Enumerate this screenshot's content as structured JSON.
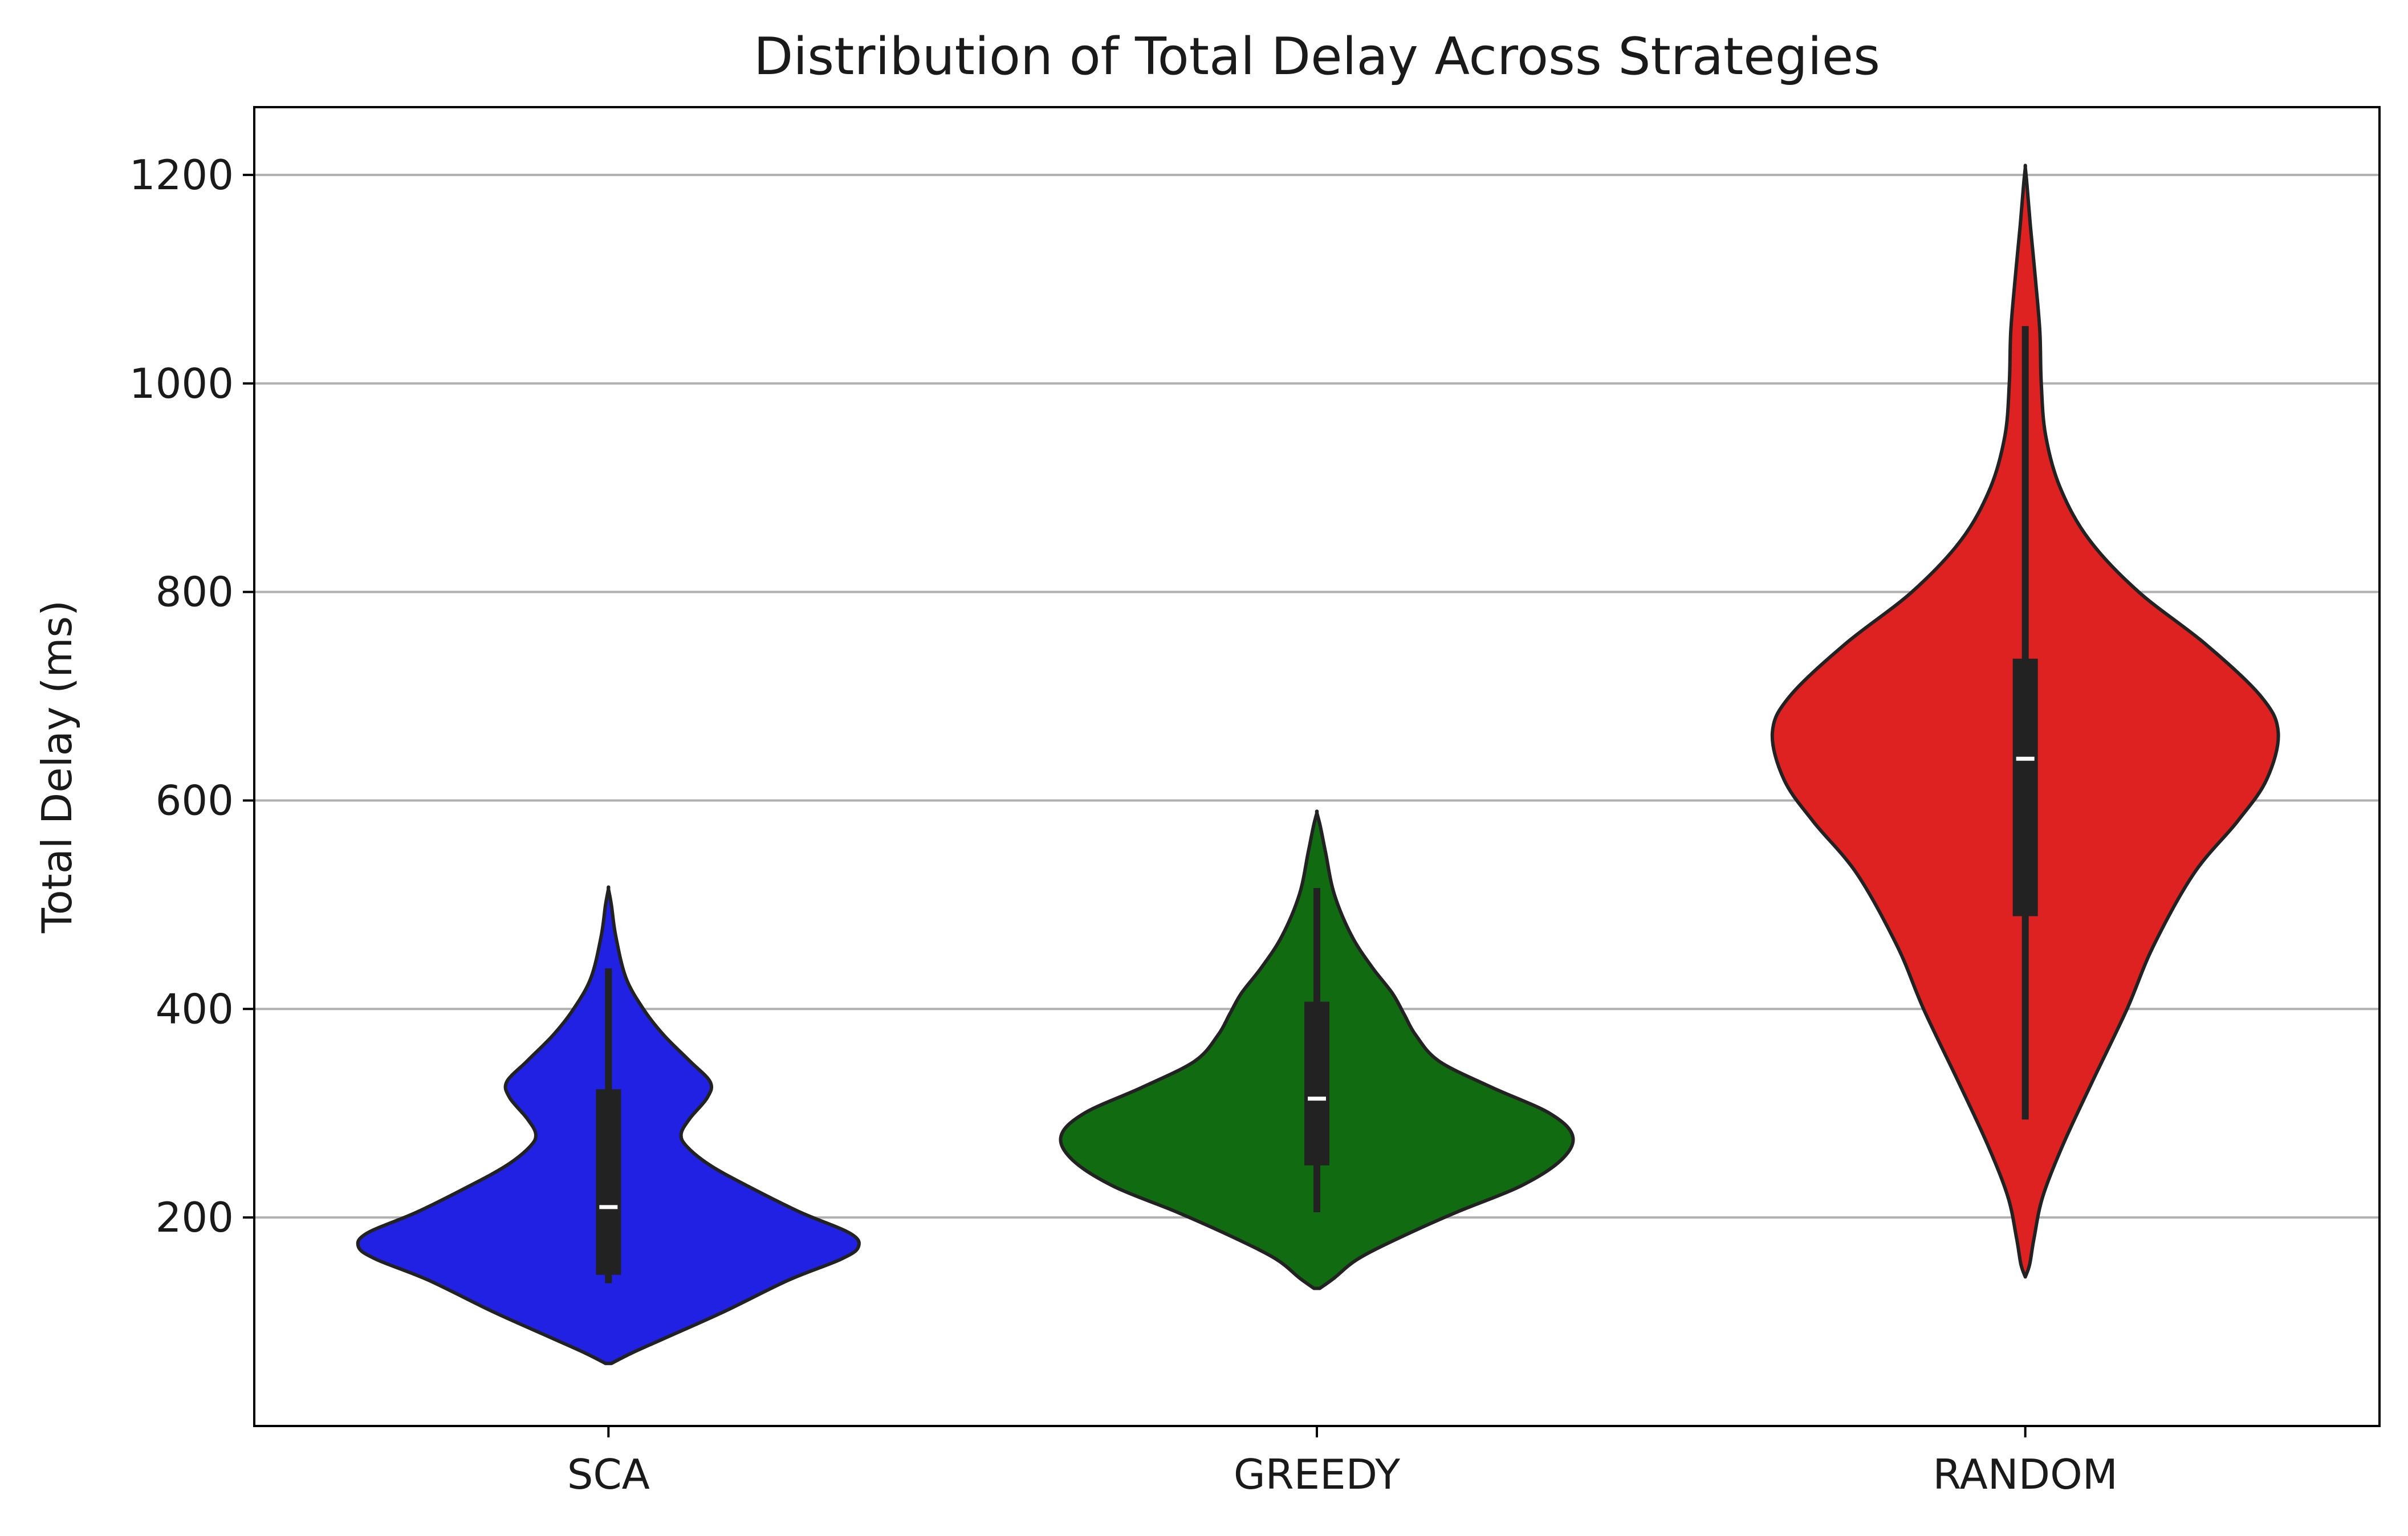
{
  "chart_data": {
    "type": "violin",
    "title": "Distribution of Total Delay Across Strategies",
    "xlabel": "",
    "ylabel": "Total Delay (ms)",
    "ylim": [
      0,
      1265
    ],
    "yticks": [
      200,
      400,
      600,
      800,
      1000,
      1200
    ],
    "grid": "horizontal",
    "categories": [
      "SCA",
      "GREEDY",
      "RANDOM"
    ],
    "colors": [
      "#2121e3",
      "#116b11",
      "#de2121"
    ],
    "series": [
      {
        "category": "SCA",
        "min": 137,
        "q1": 145,
        "median": 210,
        "q3": 323,
        "max": 439,
        "density": [
          [
            60,
            0.01
          ],
          [
            70,
            0.08
          ],
          [
            85,
            0.2
          ],
          [
            110,
            0.4
          ],
          [
            140,
            0.62
          ],
          [
            160,
            0.8
          ],
          [
            172,
            0.86
          ],
          [
            185,
            0.83
          ],
          [
            205,
            0.66
          ],
          [
            230,
            0.48
          ],
          [
            250,
            0.35
          ],
          [
            268,
            0.27
          ],
          [
            280,
            0.25
          ],
          [
            295,
            0.28
          ],
          [
            315,
            0.34
          ],
          [
            330,
            0.35
          ],
          [
            350,
            0.28
          ],
          [
            375,
            0.19
          ],
          [
            400,
            0.12
          ],
          [
            430,
            0.06
          ],
          [
            470,
            0.025
          ],
          [
            500,
            0.01
          ],
          [
            515,
            0.0
          ]
        ]
      },
      {
        "category": "GREEDY",
        "min": 205,
        "q1": 250,
        "median": 314,
        "q3": 407,
        "max": 516,
        "density": [
          [
            132,
            0.01
          ],
          [
            142,
            0.06
          ],
          [
            160,
            0.14
          ],
          [
            180,
            0.28
          ],
          [
            205,
            0.48
          ],
          [
            230,
            0.7
          ],
          [
            255,
            0.84
          ],
          [
            278,
            0.88
          ],
          [
            300,
            0.8
          ],
          [
            325,
            0.6
          ],
          [
            350,
            0.42
          ],
          [
            375,
            0.34
          ],
          [
            395,
            0.3
          ],
          [
            415,
            0.26
          ],
          [
            440,
            0.19
          ],
          [
            470,
            0.12
          ],
          [
            510,
            0.06
          ],
          [
            550,
            0.03
          ],
          [
            575,
            0.012
          ],
          [
            588,
            0.0
          ]
        ]
      },
      {
        "category": "RANDOM",
        "min": 294,
        "q1": 489,
        "median": 640,
        "q3": 736,
        "max": 1055,
        "density": [
          [
            143,
            0.0
          ],
          [
            155,
            0.015
          ],
          [
            180,
            0.03
          ],
          [
            220,
            0.06
          ],
          [
            270,
            0.13
          ],
          [
            330,
            0.23
          ],
          [
            400,
            0.35
          ],
          [
            460,
            0.44
          ],
          [
            530,
            0.58
          ],
          [
            580,
            0.73
          ],
          [
            620,
            0.83
          ],
          [
            665,
            0.87
          ],
          [
            700,
            0.81
          ],
          [
            750,
            0.62
          ],
          [
            800,
            0.39
          ],
          [
            850,
            0.22
          ],
          [
            900,
            0.12
          ],
          [
            950,
            0.07
          ],
          [
            1000,
            0.055
          ],
          [
            1050,
            0.05
          ],
          [
            1100,
            0.035
          ],
          [
            1150,
            0.018
          ],
          [
            1190,
            0.006
          ],
          [
            1207,
            0.0
          ]
        ]
      }
    ]
  }
}
